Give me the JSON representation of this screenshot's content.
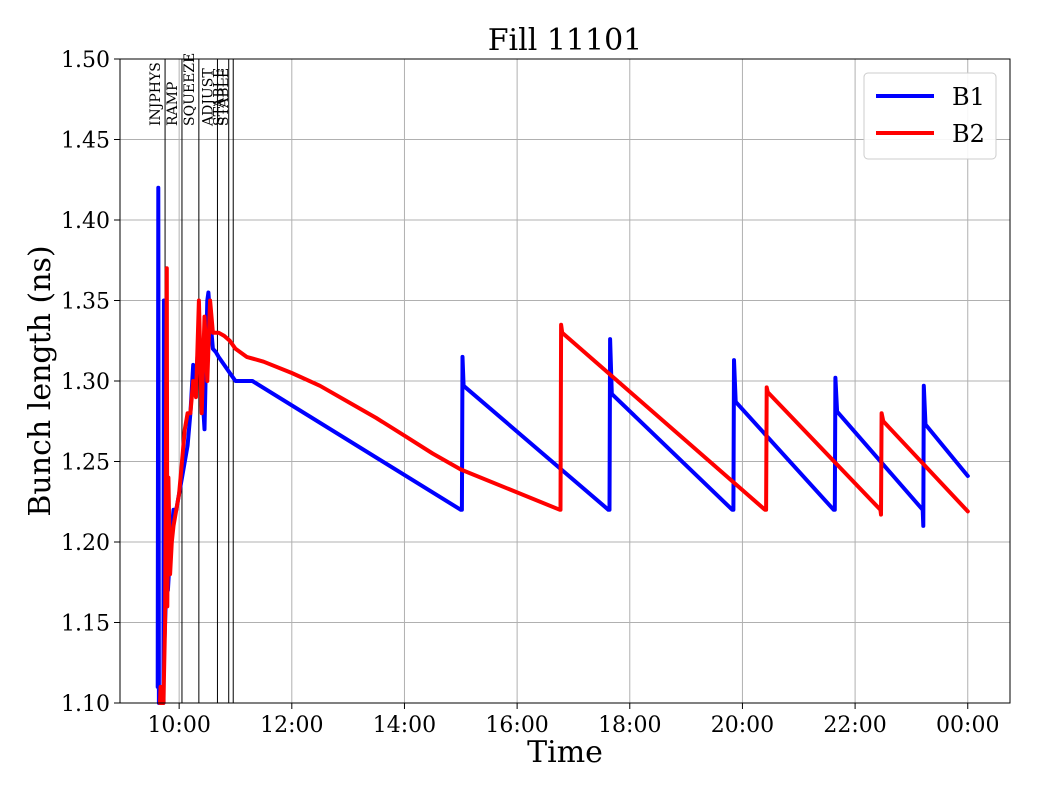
{
  "chart_data": {
    "type": "line",
    "title": "Fill 11101",
    "xlabel": "Time",
    "ylabel": "Bunch length (ns)",
    "ylim": [
      1.1,
      1.5
    ],
    "xlim_hours": [
      8.95,
      24.75
    ],
    "grid": true,
    "legend_position": "top-right",
    "x_ticks": [
      {
        "value": 10,
        "label": "10:00"
      },
      {
        "value": 12,
        "label": "12:00"
      },
      {
        "value": 14,
        "label": "14:00"
      },
      {
        "value": 16,
        "label": "16:00"
      },
      {
        "value": 18,
        "label": "18:00"
      },
      {
        "value": 20,
        "label": "20:00"
      },
      {
        "value": 22,
        "label": "22:00"
      },
      {
        "value": 24,
        "label": "00:00"
      }
    ],
    "y_ticks": [
      {
        "value": 1.1,
        "label": "1.10"
      },
      {
        "value": 1.15,
        "label": "1.15"
      },
      {
        "value": 1.2,
        "label": "1.20"
      },
      {
        "value": 1.25,
        "label": "1.25"
      },
      {
        "value": 1.3,
        "label": "1.30"
      },
      {
        "value": 1.35,
        "label": "1.35"
      },
      {
        "value": 1.4,
        "label": "1.40"
      },
      {
        "value": 1.45,
        "label": "1.45"
      },
      {
        "value": 1.5,
        "label": "1.50"
      }
    ],
    "phases": [
      {
        "label": "INJPHYS",
        "x": 9.75
      },
      {
        "label": "RAMP",
        "x": 10.05
      },
      {
        "label": "SQUEEZE",
        "x": 10.35
      },
      {
        "label": "ADJUST",
        "x": 10.68
      },
      {
        "label": "STABLE",
        "x": 10.88
      },
      {
        "label": "STABLE",
        "x": 10.96
      }
    ],
    "series": [
      {
        "name": "B1",
        "color": "#0000ff",
        "x": [
          9.62,
          9.63,
          9.64,
          9.65,
          9.66,
          9.67,
          9.72,
          9.73,
          9.74,
          9.78,
          9.8,
          9.85,
          9.9,
          9.95,
          10.0,
          10.05,
          10.1,
          10.15,
          10.2,
          10.25,
          10.3,
          10.35,
          10.4,
          10.45,
          10.5,
          10.52,
          10.55,
          10.6,
          10.65,
          10.7,
          10.8,
          10.9,
          11.0,
          11.3,
          15.0,
          15.02,
          15.03,
          15.05,
          17.62,
          17.64,
          17.65,
          17.68,
          19.82,
          19.84,
          19.85,
          19.88,
          21.62,
          21.64,
          21.65,
          21.68,
          23.2,
          23.21,
          23.22,
          23.25,
          24.0
        ],
        "values": [
          1.11,
          1.42,
          1.1,
          1.1,
          1.11,
          1.1,
          1.1,
          1.35,
          1.14,
          1.18,
          1.17,
          1.2,
          1.22,
          1.22,
          1.23,
          1.24,
          1.25,
          1.26,
          1.28,
          1.31,
          1.3,
          1.33,
          1.3,
          1.27,
          1.35,
          1.355,
          1.34,
          1.32,
          1.318,
          1.315,
          1.31,
          1.305,
          1.3,
          1.3,
          1.22,
          1.22,
          1.315,
          1.297,
          1.22,
          1.22,
          1.326,
          1.292,
          1.22,
          1.22,
          1.313,
          1.287,
          1.22,
          1.22,
          1.302,
          1.281,
          1.22,
          1.21,
          1.297,
          1.273,
          1.241
        ]
      },
      {
        "name": "B2",
        "color": "#ff0000",
        "x": [
          9.66,
          9.67,
          9.68,
          9.69,
          9.72,
          9.75,
          9.78,
          9.79,
          9.81,
          9.84,
          9.87,
          9.9,
          9.95,
          10.0,
          10.05,
          10.1,
          10.15,
          10.2,
          10.25,
          10.3,
          10.35,
          10.4,
          10.45,
          10.5,
          10.55,
          10.6,
          10.65,
          10.7,
          10.8,
          10.9,
          11.0,
          11.2,
          11.5,
          12.0,
          12.5,
          13.0,
          13.5,
          14.0,
          14.5,
          15.0,
          16.76,
          16.77,
          16.78,
          16.8,
          20.4,
          20.42,
          20.43,
          20.45,
          22.45,
          22.46,
          22.47,
          22.5,
          24.0
        ],
        "values": [
          1.1,
          1.11,
          1.1,
          1.1,
          1.1,
          1.15,
          1.37,
          1.16,
          1.24,
          1.18,
          1.2,
          1.21,
          1.22,
          1.23,
          1.25,
          1.27,
          1.28,
          1.28,
          1.3,
          1.29,
          1.35,
          1.28,
          1.34,
          1.3,
          1.35,
          1.33,
          1.33,
          1.33,
          1.328,
          1.325,
          1.32,
          1.315,
          1.312,
          1.305,
          1.297,
          1.287,
          1.277,
          1.266,
          1.255,
          1.245,
          1.22,
          1.22,
          1.335,
          1.33,
          1.22,
          1.22,
          1.296,
          1.293,
          1.22,
          1.217,
          1.28,
          1.275,
          1.219
        ]
      }
    ]
  }
}
